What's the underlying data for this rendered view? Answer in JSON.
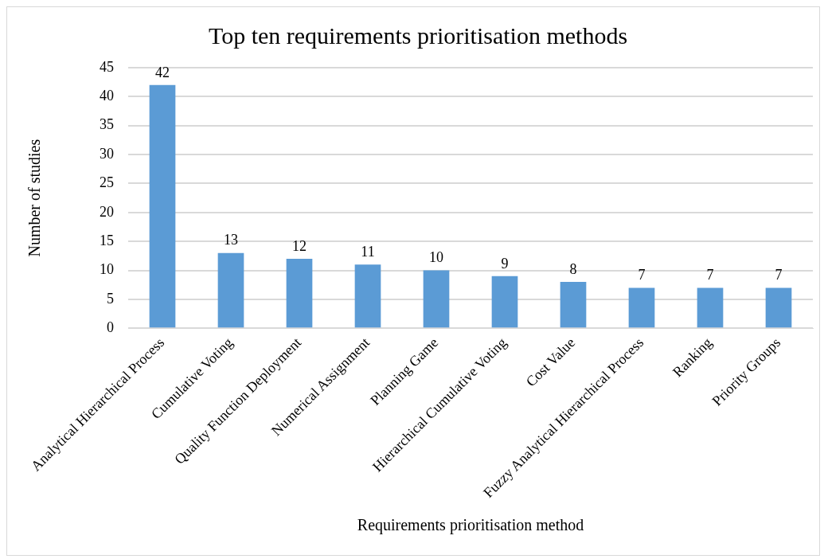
{
  "chart_data": {
    "type": "bar",
    "title": "Top ten requirements prioritisation methods",
    "xlabel": "Requirements prioritisation method",
    "ylabel": "Number of studies",
    "categories": [
      "Analytical Hierarchical Process",
      "Cumulative Voting",
      "Quality Function Deployment",
      "Numerical Assignment",
      "Planning Game",
      "Hierarchical Cumulative Voting",
      "Cost Value",
      "Fuzzy Analytical Hierarchical Process",
      "Ranking",
      "Priority Groups"
    ],
    "values": [
      42,
      13,
      12,
      11,
      10,
      9,
      8,
      7,
      7,
      7
    ],
    "color": "#5b9bd5",
    "ylim": [
      0,
      45
    ],
    "yticks": [
      0,
      5,
      10,
      15,
      20,
      25,
      30,
      35,
      40,
      45
    ],
    "grid": "y",
    "data_labels": true
  }
}
